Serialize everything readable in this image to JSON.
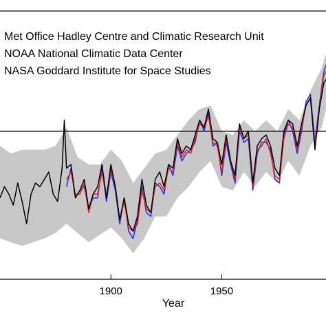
{
  "chart_data": {
    "type": "line",
    "title": "",
    "xlabel": "Year",
    "ylabel": "",
    "xlim": [
      1850,
      1997
    ],
    "ylim": [
      -0.8,
      0.65
    ],
    "x_ticks": [
      1900,
      1950
    ],
    "x_tick_labels": [
      "1900",
      "1950"
    ],
    "zero_line": 0,
    "grid": false,
    "legend": {
      "placement": "top-left",
      "entries": [
        "Met Office Hadley Centre and Climatic Research Unit",
        "NOAA National Climatic Data Center",
        "NASA Goddard Institute for Space Studies"
      ]
    },
    "colors": {
      "uncertainty_band": "#c8c8c8",
      "hadley": "#000000",
      "noaa": "#e8201a",
      "nasa": "#1a2bf0"
    },
    "uncertainty_band": {
      "name": "",
      "x": [
        1850,
        1855,
        1860,
        1865,
        1870,
        1875,
        1880,
        1885,
        1890,
        1895,
        1900,
        1905,
        1910,
        1915,
        1920,
        1925,
        1930,
        1935,
        1940,
        1945,
        1950,
        1955,
        1960,
        1965,
        1970,
        1975,
        1980,
        1985,
        1990,
        1995,
        1997
      ],
      "lower": [
        -0.58,
        -0.6,
        -0.62,
        -0.6,
        -0.58,
        -0.55,
        -0.5,
        -0.55,
        -0.6,
        -0.56,
        -0.52,
        -0.58,
        -0.66,
        -0.58,
        -0.46,
        -0.46,
        -0.36,
        -0.3,
        -0.22,
        -0.16,
        -0.3,
        -0.32,
        -0.22,
        -0.3,
        -0.22,
        -0.28,
        -0.16,
        -0.24,
        -0.08,
        0.02,
        0.12
      ],
      "upper": [
        -0.08,
        -0.12,
        -0.1,
        -0.1,
        -0.1,
        -0.08,
        0.02,
        -0.14,
        -0.18,
        -0.18,
        -0.1,
        -0.16,
        -0.28,
        -0.2,
        -0.12,
        -0.1,
        -0.02,
        0.06,
        0.12,
        0.14,
        0.0,
        -0.02,
        0.06,
        0.0,
        0.06,
        0.0,
        0.12,
        0.06,
        0.22,
        0.34,
        0.42
      ]
    },
    "series": [
      {
        "name": "Met Office Hadley Centre and Climatic Research Unit",
        "x": [
          1850,
          1852,
          1854,
          1856,
          1858,
          1860,
          1862,
          1864,
          1866,
          1868,
          1870,
          1872,
          1874,
          1876,
          1878,
          1879,
          1880,
          1882,
          1884,
          1886,
          1888,
          1890,
          1892,
          1894,
          1896,
          1898,
          1900,
          1902,
          1904,
          1906,
          1908,
          1910,
          1912,
          1914,
          1916,
          1918,
          1920,
          1922,
          1924,
          1926,
          1928,
          1930,
          1932,
          1934,
          1936,
          1938,
          1940,
          1942,
          1944,
          1946,
          1948,
          1950,
          1952,
          1954,
          1956,
          1958,
          1960,
          1962,
          1964,
          1966,
          1968,
          1970,
          1972,
          1974,
          1976,
          1978,
          1980,
          1982,
          1984,
          1986,
          1988,
          1990,
          1992,
          1994,
          1996,
          1997
        ],
        "values": [
          -0.36,
          -0.3,
          -0.34,
          -0.4,
          -0.28,
          -0.38,
          -0.5,
          -0.34,
          -0.28,
          -0.3,
          -0.26,
          -0.22,
          -0.34,
          -0.38,
          -0.2,
          0.06,
          -0.2,
          -0.18,
          -0.36,
          -0.32,
          -0.26,
          -0.42,
          -0.34,
          -0.3,
          -0.18,
          -0.36,
          -0.18,
          -0.3,
          -0.48,
          -0.36,
          -0.5,
          -0.54,
          -0.46,
          -0.26,
          -0.4,
          -0.44,
          -0.26,
          -0.22,
          -0.3,
          -0.18,
          -0.2,
          -0.04,
          -0.12,
          -0.08,
          -0.1,
          -0.02,
          0.06,
          0.02,
          0.12,
          -0.04,
          -0.06,
          -0.18,
          -0.02,
          -0.16,
          -0.24,
          0.04,
          -0.04,
          0.0,
          -0.28,
          -0.08,
          -0.04,
          -0.02,
          -0.08,
          -0.2,
          -0.24,
          0.0,
          0.06,
          0.04,
          -0.08,
          0.04,
          0.14,
          0.18,
          -0.1,
          0.12,
          0.26,
          0.28
        ]
      },
      {
        "name": "NOAA National Climatic Data Center",
        "x": [
          1880,
          1882,
          1884,
          1886,
          1888,
          1890,
          1892,
          1894,
          1896,
          1898,
          1900,
          1902,
          1904,
          1906,
          1908,
          1910,
          1912,
          1914,
          1916,
          1918,
          1920,
          1922,
          1924,
          1926,
          1928,
          1930,
          1932,
          1934,
          1936,
          1938,
          1940,
          1942,
          1944,
          1946,
          1948,
          1950,
          1952,
          1954,
          1956,
          1958,
          1960,
          1962,
          1964,
          1966,
          1968,
          1970,
          1972,
          1974,
          1976,
          1978,
          1980,
          1982,
          1984,
          1986,
          1988,
          1990,
          1992,
          1994,
          1996,
          1997
        ],
        "values": [
          -0.26,
          -0.22,
          -0.34,
          -0.34,
          -0.28,
          -0.44,
          -0.34,
          -0.34,
          -0.22,
          -0.36,
          -0.2,
          -0.3,
          -0.48,
          -0.38,
          -0.52,
          -0.54,
          -0.5,
          -0.32,
          -0.42,
          -0.44,
          -0.3,
          -0.28,
          -0.32,
          -0.2,
          -0.22,
          -0.06,
          -0.14,
          -0.1,
          -0.12,
          -0.04,
          0.04,
          0.02,
          0.08,
          -0.06,
          -0.08,
          -0.22,
          -0.04,
          -0.16,
          -0.26,
          0.02,
          -0.04,
          -0.02,
          -0.3,
          -0.1,
          -0.08,
          -0.04,
          -0.12,
          -0.24,
          -0.26,
          -0.04,
          0.04,
          0.02,
          -0.1,
          0.02,
          0.14,
          0.18,
          -0.08,
          0.12,
          0.3,
          0.32
        ]
      },
      {
        "name": "NASA Goddard Institute for Space Studies",
        "x": [
          1880,
          1882,
          1884,
          1886,
          1888,
          1890,
          1892,
          1894,
          1896,
          1898,
          1900,
          1902,
          1904,
          1906,
          1908,
          1910,
          1912,
          1914,
          1916,
          1918,
          1920,
          1922,
          1924,
          1926,
          1928,
          1930,
          1932,
          1934,
          1936,
          1938,
          1940,
          1942,
          1944,
          1946,
          1948,
          1950,
          1952,
          1954,
          1956,
          1958,
          1960,
          1962,
          1964,
          1966,
          1968,
          1970,
          1972,
          1974,
          1976,
          1978,
          1980,
          1982,
          1984,
          1986,
          1988,
          1990,
          1992,
          1994,
          1996,
          1997
        ],
        "values": [
          -0.3,
          -0.2,
          -0.36,
          -0.32,
          -0.3,
          -0.42,
          -0.36,
          -0.36,
          -0.2,
          -0.38,
          -0.22,
          -0.32,
          -0.5,
          -0.36,
          -0.54,
          -0.58,
          -0.48,
          -0.3,
          -0.44,
          -0.46,
          -0.28,
          -0.3,
          -0.34,
          -0.18,
          -0.24,
          -0.08,
          -0.16,
          -0.12,
          -0.1,
          -0.06,
          0.06,
          0.0,
          0.1,
          -0.08,
          -0.06,
          -0.24,
          -0.06,
          -0.18,
          -0.28,
          0.0,
          -0.06,
          -0.04,
          -0.32,
          -0.12,
          -0.06,
          -0.06,
          -0.1,
          -0.26,
          -0.28,
          -0.02,
          0.06,
          0.0,
          -0.12,
          0.0,
          0.16,
          0.2,
          -0.06,
          0.14,
          0.32,
          0.36
        ]
      }
    ]
  }
}
